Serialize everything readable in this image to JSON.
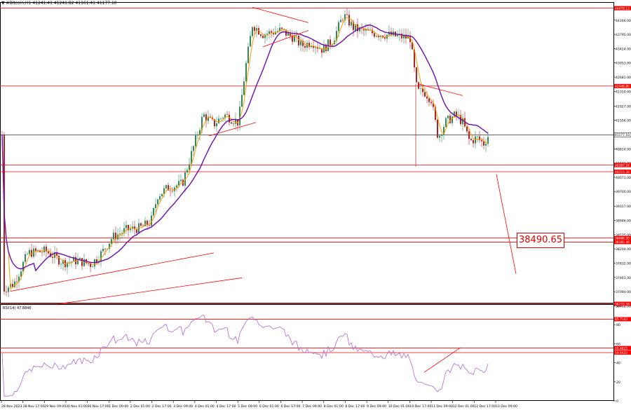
{
  "chart_data": [
    {
      "type": "candlestick",
      "symbol": "#Bitcoin,H1",
      "ohlc": [
        "41241.41",
        "41241.82",
        "41161.41",
        "41177.10"
      ],
      "ylim": [
        36800,
        44600
      ],
      "y_ticks": [
        "44503.00",
        "44166.00",
        "43795.00",
        "43424.00",
        "43053.00",
        "42681.00",
        "42310.00",
        "41927.00",
        "41556.00",
        "41185.00",
        "40814.00",
        "40442.90",
        "40071.00",
        "39700.00",
        "39317.00",
        "38946.00",
        "38575.00",
        "38204.00",
        "37832.00",
        "37461.00",
        "37090.00",
        "36718.00"
      ],
      "x_ticks": [
        "28 Nov 2023",
        "28 Nov 17:00",
        "29 Nov 09:00",
        "30 Nov 01:00",
        "30 Nov 17:00",
        "1 Dec 09:00",
        "2 Dec 01:00",
        "2 Dec 17:00",
        "3 Dec 09:00",
        "4 Dec 01:00",
        "4 Dec 17:00",
        "5 Dec 09:00",
        "6 Dec 01:00",
        "6 Dec 17:00",
        "7 Dec 09:00",
        "8 Dec 01:00",
        "8 Dec 17:00",
        "9 Dec 09:00",
        "10 Dec 01:00",
        "10 Dec 17:00",
        "11 Dec 09:00",
        "12 Dec 01:00",
        "12 Dec 17:00",
        "13 Dec 09:00"
      ],
      "current_price": 41177.1,
      "current_price_label": "41177.10",
      "levels": [
        {
          "value": 44478.13,
          "label": "44478.13"
        },
        {
          "value": 42448.8,
          "label": "42448.80"
        },
        {
          "value": 40387.24,
          "label": "40387.24"
        },
        {
          "value": 40215.38,
          "label": "40215.38"
        },
        {
          "value": 38486.2,
          "label": "38486.20"
        },
        {
          "value": 38381.48,
          "label": "38381.48"
        },
        {
          "value": 36772.34,
          "label": "36772.34"
        }
      ],
      "target_price": "38490.65",
      "colors": {
        "bull": "#2e8b57",
        "bear": "#b22222",
        "level": "#ff0000",
        "fast_ma": "#ff9900",
        "slow_ma": "#6a0dad"
      }
    },
    {
      "type": "line",
      "title": "RSI(14) 47.8846",
      "ylim": [
        0,
        100
      ],
      "y_ticks": [
        "100",
        "80",
        "60",
        "40",
        "20",
        "0"
      ],
      "levels": [
        {
          "value": 85.7143,
          "label": "85.7143"
        },
        {
          "value": 55.4622,
          "label": "55.4622"
        },
        {
          "value": 50.6422,
          "label": "50.6422"
        }
      ],
      "colors": {
        "line": "#b266d6",
        "level": "#ff0000"
      }
    }
  ]
}
